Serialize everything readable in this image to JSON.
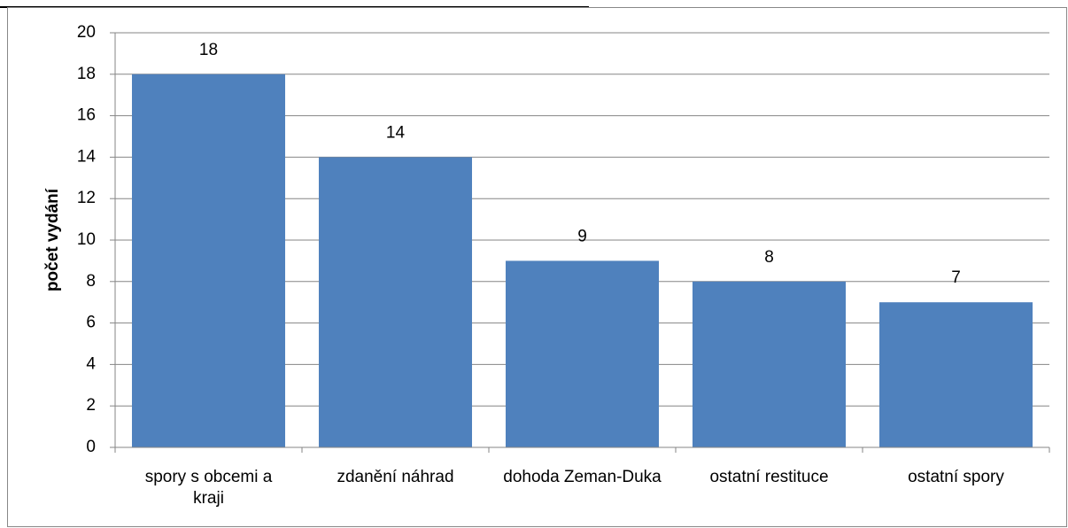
{
  "chart_data": {
    "type": "bar",
    "y_label": "počet vydání",
    "categories": [
      "spory s obcemi a kraji",
      "zdanění náhrad",
      "dohoda Zeman-Duka",
      "ostatní restituce",
      "ostatní spory"
    ],
    "values": [
      18,
      14,
      9,
      8,
      7
    ],
    "color": "#4f81bd",
    "ylim": [
      0,
      20
    ],
    "yticks": [
      0,
      2,
      4,
      6,
      8,
      10,
      12,
      14,
      16,
      18,
      20
    ],
    "grid": true
  }
}
